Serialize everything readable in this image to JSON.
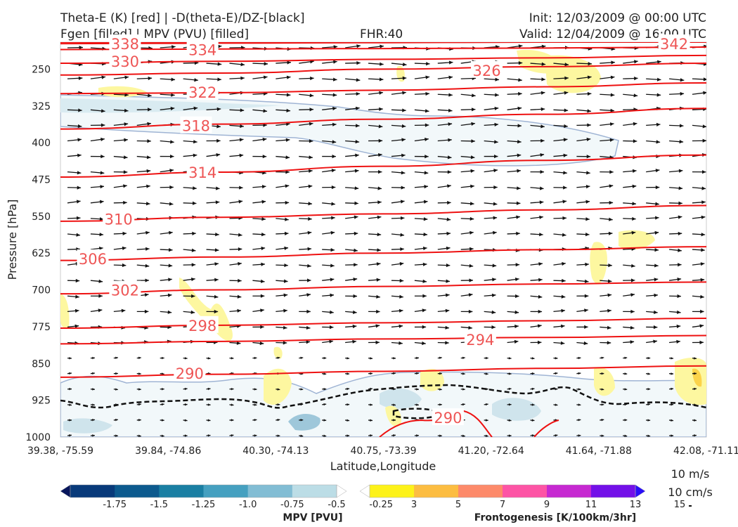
{
  "header": {
    "title_line1": "Theta-E (K) [red] | -D(theta-E)/DZ-[black]",
    "title_line2": "Fgen [filled] | MPV (PVU) [filled]",
    "fhr": "FHR:40",
    "init": "Init: 12/03/2009 @ 00:00 UTC",
    "valid": "Valid: 12/04/2009 @ 16:00 UTC"
  },
  "chart_data": {
    "type": "cross-section",
    "xlabel": "Latitude,Longitude",
    "ylabel": "Pressure [hPa]",
    "x_ticks": [
      "39.38, -75.59",
      "39.84, -74.86",
      "40.30, -74.13",
      "40.75, -73.39",
      "41.20, -72.64",
      "41.64, -71.88",
      "42.08, -71.11"
    ],
    "y_ticks": [
      250,
      325,
      400,
      475,
      550,
      625,
      700,
      775,
      850,
      925,
      1000
    ],
    "ylim": [
      1000,
      195
    ],
    "x_ticks_frac": [
      0,
      0.1667,
      0.3333,
      0.5,
      0.6667,
      0.8333,
      1.0
    ],
    "theta_e_contours": [
      {
        "label": "338",
        "p": [
          198,
          197,
          196,
          195,
          194
        ]
      },
      {
        "label": "334",
        "p": [
          210,
          209,
          208,
          207,
          205
        ]
      },
      {
        "label": "342",
        "p": [
          195,
          195,
          195,
          195,
          195
        ]
      },
      {
        "label": "330",
        "p": [
          238,
          234,
          230,
          227,
          222
        ]
      },
      {
        "label": "326",
        "p": [
          262,
          258,
          250,
          245,
          238
        ]
      },
      {
        "label": "322",
        "p": [
          300,
          298,
          293,
          286,
          278
        ]
      },
      {
        "label": "318",
        "p": [
          372,
          362,
          352,
          342,
          330
        ]
      },
      {
        "label": "314",
        "p": [
          470,
          460,
          448,
          436,
          425
        ]
      },
      {
        "label": "310",
        "p": [
          560,
          552,
          545,
          537,
          528
        ]
      },
      {
        "label": "306",
        "p": [
          640,
          633,
          625,
          618,
          612
        ]
      },
      {
        "label": "302",
        "p": [
          708,
          700,
          693,
          688,
          684
        ]
      },
      {
        "label": "298",
        "p": [
          778,
          772,
          767,
          763,
          758
        ]
      },
      {
        "label": "294",
        "p": [
          810,
          805,
          800,
          797,
          793
        ]
      },
      {
        "label": "290",
        "p": [
          878,
          872,
          866,
          860,
          855
        ]
      }
    ],
    "contour_labels": [
      {
        "text": "338",
        "x": 0.1,
        "p": 198
      },
      {
        "text": "334",
        "x": 0.22,
        "p": 210
      },
      {
        "text": "342",
        "x": 0.95,
        "p": 198
      },
      {
        "text": "330",
        "x": 0.1,
        "p": 234
      },
      {
        "text": "326",
        "x": 0.66,
        "p": 252
      },
      {
        "text": "322",
        "x": 0.22,
        "p": 297
      },
      {
        "text": "318",
        "x": 0.21,
        "p": 365
      },
      {
        "text": "314",
        "x": 0.22,
        "p": 460
      },
      {
        "text": "310",
        "x": 0.09,
        "p": 555
      },
      {
        "text": "306",
        "x": 0.05,
        "p": 636
      },
      {
        "text": "302",
        "x": 0.1,
        "p": 700
      },
      {
        "text": "298",
        "x": 0.22,
        "p": 772
      },
      {
        "text": "294",
        "x": 0.65,
        "p": 801
      },
      {
        "text": "290",
        "x": 0.2,
        "p": 870
      },
      {
        "text": "290",
        "x": 0.6,
        "p": 960
      }
    ],
    "mpv_colorbar": {
      "title": "MPV [PVU]",
      "ticks": [
        "-1.75",
        "-1.5",
        "-1.25",
        "-1.0",
        "-0.75",
        "-0.5",
        "-0.25"
      ],
      "colors": [
        "#08165c",
        "#083a7a",
        "#0c5a8e",
        "#1a7fa3",
        "#45a0c0",
        "#82bdd4",
        "#bcdde6",
        "#ffffff"
      ]
    },
    "fgen_colorbar": {
      "title": "Frontogenesis [K/100km/3hr]",
      "ticks": [
        "3",
        "5",
        "7",
        "9",
        "11",
        "13",
        "15"
      ],
      "colors": [
        "#ffffff",
        "#fdf219",
        "#fcbd41",
        "#fd8a6a",
        "#fd54a5",
        "#c629d1",
        "#7310e8",
        "#2a0ef8"
      ]
    },
    "wind_reference": {
      "line1": "10 m/s",
      "line2": "10 cm/s"
    }
  }
}
